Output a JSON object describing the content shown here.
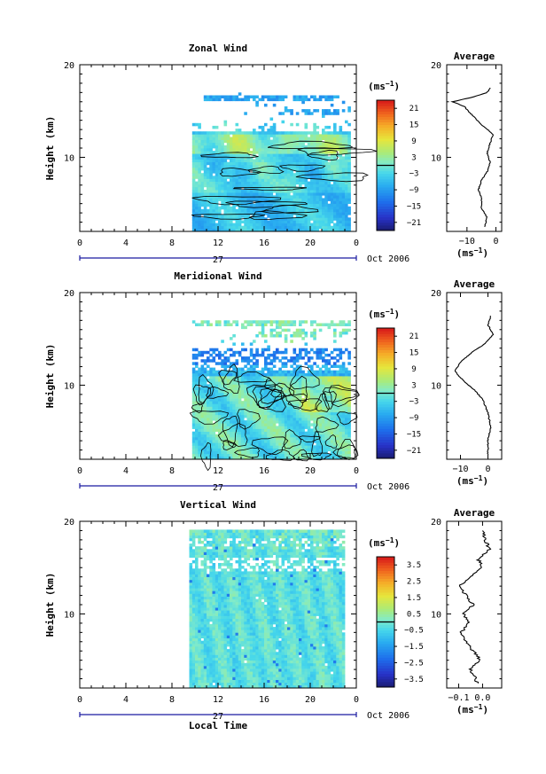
{
  "figure": {
    "x_axis_label": "Local Time",
    "date_label": "Oct 2006",
    "day_label": "27",
    "avg_title": "Average",
    "unit_main": "(ms",
    "unit_exp": "−1",
    "unit_close": ")",
    "height_label": "Height (km)"
  },
  "chart_data": [
    {
      "type": "heatmap",
      "title": "Zonal Wind",
      "ylabel": "Height (km)",
      "xlabel": "Local Time",
      "xlim": [
        0,
        24
      ],
      "xticks": [
        "0",
        "4",
        "8",
        "12",
        "16",
        "20",
        "0"
      ],
      "xtick_values": [
        0,
        4,
        8,
        12,
        16,
        20,
        24
      ],
      "ylim": [
        2,
        20
      ],
      "yticks": [
        "10",
        "20"
      ],
      "data_time_range": [
        9.5,
        23.5
      ],
      "data_height_range": [
        2,
        17
      ],
      "colorbar_unit": "(ms−1)",
      "colorbar_range": [
        -24,
        24
      ],
      "colorbar_labels": [
        "21",
        "15",
        "9",
        "3",
        "−3",
        "−9",
        "−15",
        "−21"
      ],
      "zero_contour": true,
      "average_profile": {
        "title": "Average",
        "xlim": [
          -17,
          2
        ],
        "xticks": [
          "−10",
          "0"
        ],
        "xtick_values": [
          -10,
          0
        ],
        "ylim": [
          2,
          20
        ],
        "height": [
          2.5,
          3.5,
          4.5,
          5.5,
          6.5,
          7.5,
          8.5,
          9.5,
          10.5,
          11.5,
          12.5,
          13.5,
          14.5,
          15.5,
          16.0,
          16.5,
          17.0,
          17.5
        ],
        "value": [
          -4,
          -3,
          -5,
          -5,
          -6,
          -5,
          -3,
          -2,
          -3,
          -2,
          -1,
          -5,
          -8,
          -11,
          -15,
          -8,
          -3,
          -2
        ]
      }
    },
    {
      "type": "heatmap",
      "title": "Meridional Wind",
      "ylabel": "Height (km)",
      "xlabel": "Local Time",
      "xlim": [
        0,
        24
      ],
      "xticks": [
        "0",
        "4",
        "8",
        "12",
        "16",
        "20",
        "0"
      ],
      "xtick_values": [
        0,
        4,
        8,
        12,
        16,
        20,
        24
      ],
      "ylim": [
        2,
        20
      ],
      "yticks": [
        "10",
        "20"
      ],
      "data_time_range": [
        9.5,
        23.5
      ],
      "data_height_range": [
        2,
        17
      ],
      "colorbar_unit": "(ms−1)",
      "colorbar_range": [
        -24,
        24
      ],
      "colorbar_labels": [
        "21",
        "15",
        "9",
        "3",
        "−3",
        "−9",
        "−15",
        "−21"
      ],
      "zero_contour": true,
      "average_profile": {
        "title": "Average",
        "xlim": [
          -15,
          5
        ],
        "xticks": [
          "−10",
          "0"
        ],
        "xtick_values": [
          -10,
          0
        ],
        "ylim": [
          2,
          20
        ],
        "height": [
          2.5,
          4,
          5.5,
          7,
          8.5,
          9.5,
          10.5,
          11.5,
          12.5,
          13.5,
          14.5,
          15.5,
          16.5,
          17.5
        ],
        "value": [
          0,
          0,
          1,
          0,
          -2,
          -5,
          -9,
          -12,
          -10,
          -6,
          -1,
          2,
          0,
          1
        ]
      }
    },
    {
      "type": "heatmap",
      "title": "Vertical Wind",
      "ylabel": "Height (km)",
      "xlabel": "Local Time",
      "xlim": [
        0,
        24
      ],
      "xticks": [
        "0",
        "4",
        "8",
        "12",
        "16",
        "20",
        "0"
      ],
      "xtick_values": [
        0,
        4,
        8,
        12,
        16,
        20,
        24
      ],
      "ylim": [
        2,
        20
      ],
      "yticks": [
        "10",
        "20"
      ],
      "data_time_range": [
        9.5,
        23
      ],
      "data_height_range": [
        2,
        19
      ],
      "colorbar_unit": "(ms−1)",
      "colorbar_range": [
        -4,
        4
      ],
      "colorbar_labels": [
        "3.5",
        "2.5",
        "1.5",
        "0.5",
        "−0.5",
        "−1.5",
        "−2.5",
        "−3.5"
      ],
      "zero_contour": false,
      "average_profile": {
        "title": "Average",
        "xlim": [
          -0.15,
          0.08
        ],
        "xticks": [
          "−0.1",
          "0.0"
        ],
        "xtick_values": [
          -0.1,
          0.0
        ],
        "ylim": [
          2,
          20
        ],
        "height": [
          2.5,
          4,
          5,
          6,
          7,
          8,
          9,
          10,
          11,
          12,
          13,
          14,
          15,
          16,
          17,
          18,
          19
        ],
        "value": [
          -0.02,
          -0.05,
          -0.01,
          -0.04,
          -0.07,
          -0.09,
          -0.06,
          -0.08,
          -0.04,
          -0.07,
          -0.1,
          -0.05,
          0.0,
          -0.02,
          0.03,
          0.01,
          0.0
        ]
      }
    }
  ]
}
